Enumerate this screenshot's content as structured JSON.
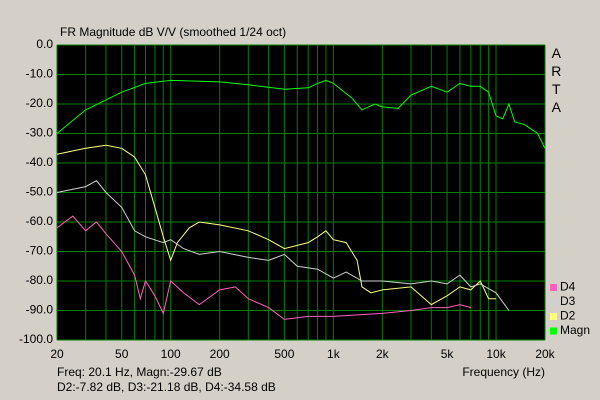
{
  "chart_data": {
    "type": "line",
    "title": "FR Magnitude dB V/V (smoothed 1/24 oct)",
    "watermark": "ARTA",
    "xlabel": "Frequency (Hz)",
    "readout": [
      "Freq: 20.1 Hz, Magn:-29.67 dB",
      "D2:-7.82 dB, D3:-21.18 dB, D4:-34.58 dB"
    ],
    "xscale": "log",
    "xlim": [
      20,
      20000
    ],
    "ylim": [
      -100,
      0
    ],
    "xticks": [
      20,
      50,
      100,
      200,
      500,
      {
        "value": 1000,
        "label": "1k"
      },
      {
        "value": 2000,
        "label": "2k"
      },
      {
        "value": 5000,
        "label": "5k"
      },
      {
        "value": 10000,
        "label": "10k"
      },
      {
        "value": 20000,
        "label": "20k"
      }
    ],
    "xminorticks": [
      30,
      40,
      60,
      70,
      80,
      90,
      300,
      400,
      600,
      700,
      800,
      900,
      3000,
      4000,
      6000,
      7000,
      8000,
      9000
    ],
    "yticks": [
      {
        "value": 0,
        "label": "0.0"
      },
      {
        "value": -10,
        "label": "-10.0"
      },
      {
        "value": -20,
        "label": "-20.0"
      },
      {
        "value": -30,
        "label": "-30.0"
      },
      {
        "value": -40,
        "label": "-40.0"
      },
      {
        "value": -50,
        "label": "-50.0"
      },
      {
        "value": -60,
        "label": "-60.0"
      },
      {
        "value": -70,
        "label": "-70.0"
      },
      {
        "value": -80,
        "label": "-80.0"
      },
      {
        "value": -90,
        "label": "-90.0"
      },
      {
        "value": -100,
        "label": "-100.0"
      }
    ],
    "grid": true,
    "grid_color": "#008000",
    "legend": "lower right",
    "series": [
      {
        "name": "Magn",
        "color": "#00ff00",
        "x": [
          20,
          30,
          50,
          70,
          100,
          200,
          300,
          500,
          700,
          800,
          900,
          1000,
          1300,
          1500,
          1800,
          2000,
          2500,
          3000,
          4000,
          4500,
          5000,
          6000,
          7000,
          8000,
          9000,
          10000,
          11000,
          12000,
          13000,
          15000,
          18000,
          20000
        ],
        "values": [
          -30,
          -22,
          -16,
          -13,
          -12,
          -12.5,
          -13.5,
          -15,
          -14.5,
          -13,
          -12,
          -13,
          -18,
          -22,
          -20,
          -21,
          -21.5,
          -17,
          -14,
          -15,
          -16,
          -13,
          -14,
          -14,
          -16,
          -24,
          -25,
          -20,
          -26,
          -27,
          -30,
          -35
        ]
      },
      {
        "name": "D2",
        "color": "#ffff80",
        "x": [
          20,
          30,
          40,
          50,
          60,
          70,
          80,
          90,
          100,
          110,
          130,
          150,
          200,
          300,
          400,
          500,
          700,
          800,
          900,
          1000,
          1200,
          1400,
          1500,
          1700,
          2000,
          3000,
          4000,
          5000,
          6000,
          7000,
          8000,
          9000,
          10000
        ],
        "values": [
          -37,
          -35,
          -34,
          -35,
          -38,
          -44,
          -55,
          -65,
          -73,
          -67,
          -62,
          -60,
          -61,
          -63,
          -66,
          -69,
          -67,
          -65,
          -63,
          -66,
          -67,
          -73,
          -82,
          -84,
          -83,
          -82,
          -88,
          -85,
          -82,
          -83,
          -80,
          -86,
          -86
        ]
      },
      {
        "name": "D3",
        "color": "#d0d0d0",
        "x": [
          20,
          30,
          35,
          40,
          50,
          60,
          70,
          90,
          100,
          120,
          150,
          200,
          300,
          400,
          500,
          600,
          800,
          1000,
          1200,
          1500,
          2000,
          3000,
          4000,
          5000,
          6000,
          7000,
          8000,
          10000,
          12000
        ],
        "values": [
          -50,
          -48,
          -46,
          -50,
          -55,
          -63,
          -65,
          -67,
          -66,
          -69,
          -71,
          -70,
          -72,
          -73,
          -71,
          -75,
          -76,
          -79,
          -77,
          -80,
          -80,
          -81,
          -80,
          -81,
          -78,
          -82,
          -81,
          -84,
          -90
        ]
      },
      {
        "name": "D4",
        "color": "#ff60c0",
        "x": [
          20,
          25,
          30,
          35,
          40,
          50,
          60,
          65,
          70,
          80,
          90,
          100,
          120,
          150,
          200,
          250,
          300,
          400,
          500,
          700,
          1000,
          2000,
          3000,
          4000,
          5000,
          6000,
          7000
        ],
        "values": [
          -62,
          -58,
          -63,
          -60,
          -64,
          -70,
          -78,
          -86,
          -80,
          -85,
          -91,
          -80,
          -84,
          -88,
          -83,
          -82,
          -86,
          -89,
          -93,
          -92,
          -92,
          -91,
          -90,
          -89,
          -89,
          -88,
          -89
        ]
      }
    ]
  }
}
